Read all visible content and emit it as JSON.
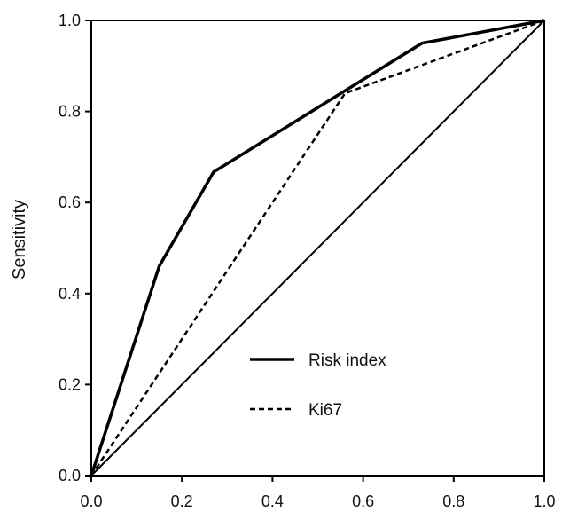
{
  "chart_data": {
    "type": "line",
    "title": "",
    "xlabel": "",
    "ylabel": "Sensitivity",
    "xlim": [
      0,
      1
    ],
    "ylim": [
      0,
      1
    ],
    "x_ticks": [
      "0.0",
      "0.2",
      "0.4",
      "0.6",
      "0.8",
      "1.0"
    ],
    "y_ticks": [
      "0.0",
      "0.2",
      "0.4",
      "0.6",
      "0.8",
      "1.0"
    ],
    "grid": false,
    "legend_position": "center-right",
    "series": [
      {
        "name": "Risk index",
        "style": "solid-thick",
        "color": "#000000",
        "points": [
          [
            0.0,
            0.0
          ],
          [
            0.15,
            0.46
          ],
          [
            0.27,
            0.667
          ],
          [
            0.73,
            0.95
          ],
          [
            1.0,
            1.0
          ]
        ]
      },
      {
        "name": "Ki67",
        "style": "dashed",
        "color": "#000000",
        "points": [
          [
            0.0,
            0.0
          ],
          [
            0.56,
            0.84
          ],
          [
            1.0,
            1.0
          ]
        ]
      },
      {
        "style": "reference-diagonal",
        "color": "#000000",
        "points": [
          [
            0.0,
            0.0
          ],
          [
            1.0,
            1.0
          ]
        ]
      }
    ]
  }
}
